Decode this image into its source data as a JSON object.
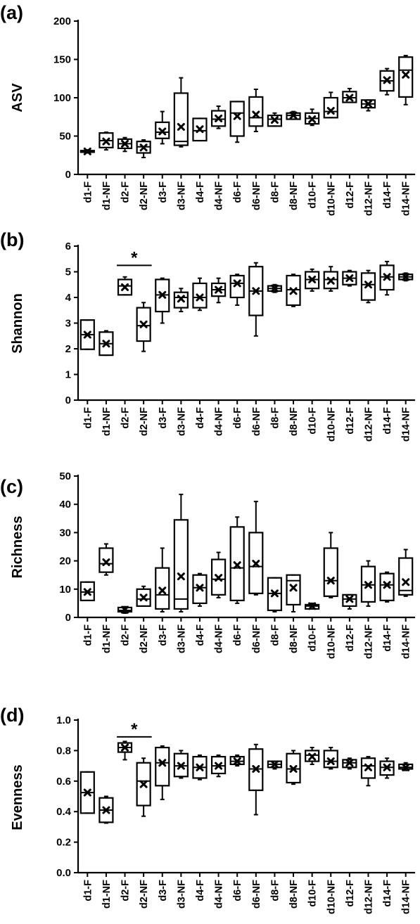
{
  "chart_data": [
    {
      "panel": "(a)",
      "type": "box",
      "ylabel": "ASV",
      "ylim": [
        0,
        200
      ],
      "yticks": [
        0,
        50,
        100,
        150,
        200
      ],
      "categories": [
        "d1-F",
        "d1-NF",
        "d2-F",
        "d2-NF",
        "d3-F",
        "d3-NF",
        "d4-F",
        "d4-NF",
        "d6-F",
        "d6-NF",
        "d8-F",
        "d8-NF",
        "d10-F",
        "d10-NF",
        "d12-F",
        "d12-NF",
        "d14-F",
        "d14-NF"
      ],
      "boxes": [
        {
          "min": 28,
          "q1": 29,
          "median": 30,
          "q3": 31,
          "max": 32,
          "mean": 30
        },
        {
          "min": 32,
          "q1": 35,
          "median": 44,
          "q3": 54,
          "max": 55,
          "mean": 43
        },
        {
          "min": 30,
          "q1": 34,
          "median": 40,
          "q3": 46,
          "max": 48,
          "mean": 40
        },
        {
          "min": 22,
          "q1": 28,
          "median": 36,
          "q3": 43,
          "max": 45,
          "mean": 35
        },
        {
          "min": 40,
          "q1": 47,
          "median": 55,
          "q3": 68,
          "max": 82,
          "mean": 56
        },
        {
          "min": 36,
          "q1": 38,
          "median": 43,
          "q3": 106,
          "max": 126,
          "mean": 62
        },
        {
          "min": 44,
          "q1": 44,
          "median": 57,
          "q3": 73,
          "max": 73,
          "mean": 59
        },
        {
          "min": 60,
          "q1": 63,
          "median": 72,
          "q3": 83,
          "max": 89,
          "mean": 73
        },
        {
          "min": 42,
          "q1": 50,
          "median": 80,
          "q3": 95,
          "max": 95,
          "mean": 76
        },
        {
          "min": 56,
          "q1": 63,
          "median": 74,
          "q3": 101,
          "max": 111,
          "mean": 78
        },
        {
          "min": 63,
          "q1": 63,
          "median": 72,
          "q3": 77,
          "max": 80,
          "mean": 71
        },
        {
          "min": 72,
          "q1": 72,
          "median": 77,
          "q3": 80,
          "max": 82,
          "mean": 77
        },
        {
          "min": 64,
          "q1": 66,
          "median": 73,
          "q3": 80,
          "max": 85,
          "mean": 72
        },
        {
          "min": 74,
          "q1": 74,
          "median": 82,
          "q3": 100,
          "max": 107,
          "mean": 83
        },
        {
          "min": 94,
          "q1": 94,
          "median": 100,
          "q3": 108,
          "max": 112,
          "mean": 100
        },
        {
          "min": 83,
          "q1": 87,
          "median": 92,
          "q3": 97,
          "max": 97,
          "mean": 92
        },
        {
          "min": 104,
          "q1": 109,
          "median": 122,
          "q3": 135,
          "max": 138,
          "mean": 123
        },
        {
          "min": 91,
          "q1": 101,
          "median": 136,
          "q3": 153,
          "max": 155,
          "mean": 130
        }
      ],
      "significance": []
    },
    {
      "panel": "(b)",
      "type": "box",
      "ylabel": "Shannon",
      "ylim": [
        0,
        6
      ],
      "yticks": [
        0,
        1,
        2,
        3,
        4,
        5,
        6
      ],
      "categories": [
        "d1-F",
        "d1-NF",
        "d2-F",
        "d2-NF",
        "d3-F",
        "d3-NF",
        "d4-F",
        "d4-NF",
        "d6-F",
        "d6-NF",
        "d8-F",
        "d8-NF",
        "d10-F",
        "d10-NF",
        "d12-F",
        "d12-NF",
        "d14-F",
        "d14-NF"
      ],
      "boxes": [
        {
          "min": 1.98,
          "q1": 1.98,
          "median": 2.55,
          "q3": 3.12,
          "max": 3.12,
          "mean": 2.55
        },
        {
          "min": 1.75,
          "q1": 1.75,
          "median": 2.2,
          "q3": 2.65,
          "max": 2.7,
          "mean": 2.2
        },
        {
          "min": 4.1,
          "q1": 4.1,
          "median": 4.45,
          "q3": 4.7,
          "max": 4.8,
          "mean": 4.4
        },
        {
          "min": 1.9,
          "q1": 2.3,
          "median": 2.9,
          "q3": 3.6,
          "max": 3.8,
          "mean": 2.95
        },
        {
          "min": 3.0,
          "q1": 3.45,
          "median": 4.1,
          "q3": 4.7,
          "max": 4.75,
          "mean": 4.1
        },
        {
          "min": 3.45,
          "q1": 3.6,
          "median": 4.0,
          "q3": 4.2,
          "max": 4.35,
          "mean": 3.95
        },
        {
          "min": 3.5,
          "q1": 3.6,
          "median": 4.0,
          "q3": 4.55,
          "max": 4.75,
          "mean": 4.0
        },
        {
          "min": 3.8,
          "q1": 4.05,
          "median": 4.3,
          "q3": 4.55,
          "max": 4.75,
          "mean": 4.3
        },
        {
          "min": 3.7,
          "q1": 4.0,
          "median": 4.55,
          "q3": 4.85,
          "max": 4.9,
          "mean": 4.55
        },
        {
          "min": 2.5,
          "q1": 3.3,
          "median": 4.25,
          "q3": 5.2,
          "max": 5.35,
          "mean": 4.25
        },
        {
          "min": 4.2,
          "q1": 4.25,
          "median": 4.35,
          "q3": 4.45,
          "max": 4.5,
          "mean": 4.35
        },
        {
          "min": 3.65,
          "q1": 3.7,
          "median": 4.3,
          "q3": 4.85,
          "max": 4.9,
          "mean": 4.25
        },
        {
          "min": 4.25,
          "q1": 4.35,
          "median": 4.7,
          "q3": 5.0,
          "max": 5.1,
          "mean": 4.7
        },
        {
          "min": 4.25,
          "q1": 4.35,
          "median": 4.7,
          "q3": 5.0,
          "max": 5.2,
          "mean": 4.65
        },
        {
          "min": 4.45,
          "q1": 4.5,
          "median": 4.75,
          "q3": 5.0,
          "max": 5.05,
          "mean": 4.75
        },
        {
          "min": 3.8,
          "q1": 3.9,
          "median": 4.5,
          "q3": 4.95,
          "max": 5.05,
          "mean": 4.5
        },
        {
          "min": 4.1,
          "q1": 4.3,
          "median": 4.8,
          "q3": 5.25,
          "max": 5.4,
          "mean": 4.8
        },
        {
          "min": 4.65,
          "q1": 4.7,
          "median": 4.8,
          "q3": 4.9,
          "max": 4.95,
          "mean": 4.8
        }
      ],
      "significance": [
        {
          "from": "d2-F",
          "to": "d2-NF",
          "at": 5.25,
          "label": "*"
        }
      ]
    },
    {
      "panel": "(c)",
      "type": "box",
      "ylabel": "Richness",
      "ylim": [
        0,
        50
      ],
      "yticks": [
        0,
        10,
        20,
        30,
        40,
        50
      ],
      "categories": [
        "d1-F",
        "d1-NF",
        "d2-F",
        "d2-NF",
        "d3-F",
        "d3-NF",
        "d4-F",
        "d4-NF",
        "d6-F",
        "d6-NF",
        "d8-F",
        "d8-NF",
        "d10-F",
        "d10-NF",
        "d12-F",
        "d12-NF",
        "d14-F",
        "d14-NF"
      ],
      "boxes": [
        {
          "min": 6,
          "q1": 6,
          "median": 9,
          "q3": 12.5,
          "max": 12.5,
          "mean": 9
        },
        {
          "min": 15,
          "q1": 16,
          "median": 19,
          "q3": 24.5,
          "max": 26,
          "mean": 19.5
        },
        {
          "min": 1.5,
          "q1": 2,
          "median": 2.5,
          "q3": 3.5,
          "max": 3.8,
          "mean": 2.7
        },
        {
          "min": 4,
          "q1": 4,
          "median": 6.5,
          "q3": 10,
          "max": 11,
          "mean": 7
        },
        {
          "min": 2,
          "q1": 3,
          "median": 8,
          "q3": 17.5,
          "max": 24.5,
          "mean": 9.5
        },
        {
          "min": 2,
          "q1": 3,
          "median": 6.5,
          "q3": 34.5,
          "max": 43.5,
          "mean": 14.5
        },
        {
          "min": 4,
          "q1": 5,
          "median": 10.5,
          "q3": 15,
          "max": 15.5,
          "mean": 10.5
        },
        {
          "min": 7,
          "q1": 8,
          "median": 13.5,
          "q3": 20.5,
          "max": 23,
          "mean": 14
        },
        {
          "min": 5,
          "q1": 6,
          "median": 17.5,
          "q3": 32,
          "max": 35.5,
          "mean": 18.5
        },
        {
          "min": 8,
          "q1": 8.5,
          "median": 18,
          "q3": 30,
          "max": 41,
          "mean": 19
        },
        {
          "min": 2,
          "q1": 2.5,
          "median": 8.5,
          "q3": 14,
          "max": 14,
          "mean": 8.5
        },
        {
          "min": 2,
          "q1": 4.5,
          "median": 13,
          "q3": 15,
          "max": 15,
          "mean": 10.5
        },
        {
          "min": 3,
          "q1": 3,
          "median": 4,
          "q3": 4.5,
          "max": 5,
          "mean": 4
        },
        {
          "min": 7,
          "q1": 7.5,
          "median": 13,
          "q3": 24.5,
          "max": 30,
          "mean": 13
        },
        {
          "min": 3,
          "q1": 4,
          "median": 6.5,
          "q3": 8,
          "max": 8,
          "mean": 6.5
        },
        {
          "min": 4,
          "q1": 5.5,
          "median": 11.5,
          "q3": 18,
          "max": 20,
          "mean": 11.5
        },
        {
          "min": 5.5,
          "q1": 6,
          "median": 11.5,
          "q3": 15.5,
          "max": 16,
          "mean": 11.5
        },
        {
          "min": 7.5,
          "q1": 8,
          "median": 9.5,
          "q3": 21,
          "max": 24,
          "mean": 12.5
        }
      ],
      "significance": []
    },
    {
      "panel": "(d)",
      "type": "box",
      "ylabel": "Evenness",
      "ylim": [
        0,
        1.0
      ],
      "yticks": [
        0.0,
        0.2,
        0.4,
        0.6,
        0.8,
        1.0
      ],
      "ytick_labels": [
        "0.0",
        "0.2",
        "0.4",
        "0.6",
        "0.8",
        "1.0"
      ],
      "categories": [
        "d1-F",
        "d1-NF",
        "d2-F",
        "d2-NF",
        "d3-F",
        "d3-NF",
        "d4-F",
        "d4-NF",
        "d6-F",
        "d6-NF",
        "d8-F",
        "d8-NF",
        "d10-F",
        "d10-NF",
        "d12-F",
        "d12-NF",
        "d14-F",
        "d14-NF"
      ],
      "boxes": [
        {
          "min": 0.39,
          "q1": 0.39,
          "median": 0.525,
          "q3": 0.66,
          "max": 0.66,
          "mean": 0.525
        },
        {
          "min": 0.325,
          "q1": 0.33,
          "median": 0.41,
          "q3": 0.49,
          "max": 0.5,
          "mean": 0.41
        },
        {
          "min": 0.74,
          "q1": 0.79,
          "median": 0.82,
          "q3": 0.85,
          "max": 0.86,
          "mean": 0.82
        },
        {
          "min": 0.37,
          "q1": 0.44,
          "median": 0.6,
          "q3": 0.72,
          "max": 0.75,
          "mean": 0.58
        },
        {
          "min": 0.48,
          "q1": 0.57,
          "median": 0.72,
          "q3": 0.82,
          "max": 0.83,
          "mean": 0.72
        },
        {
          "min": 0.62,
          "q1": 0.63,
          "median": 0.7,
          "q3": 0.78,
          "max": 0.8,
          "mean": 0.7
        },
        {
          "min": 0.61,
          "q1": 0.62,
          "median": 0.69,
          "q3": 0.76,
          "max": 0.77,
          "mean": 0.69
        },
        {
          "min": 0.63,
          "q1": 0.65,
          "median": 0.7,
          "q3": 0.76,
          "max": 0.77,
          "mean": 0.7
        },
        {
          "min": 0.7,
          "q1": 0.71,
          "median": 0.73,
          "q3": 0.76,
          "max": 0.77,
          "mean": 0.73
        },
        {
          "min": 0.38,
          "q1": 0.54,
          "median": 0.68,
          "q3": 0.81,
          "max": 0.84,
          "mean": 0.68
        },
        {
          "min": 0.68,
          "q1": 0.69,
          "median": 0.71,
          "q3": 0.73,
          "max": 0.73,
          "mean": 0.71
        },
        {
          "min": 0.58,
          "q1": 0.59,
          "median": 0.68,
          "q3": 0.78,
          "max": 0.8,
          "mean": 0.68
        },
        {
          "min": 0.71,
          "q1": 0.73,
          "median": 0.77,
          "q3": 0.8,
          "max": 0.82,
          "mean": 0.76
        },
        {
          "min": 0.68,
          "q1": 0.69,
          "median": 0.73,
          "q3": 0.8,
          "max": 0.82,
          "mean": 0.73
        },
        {
          "min": 0.68,
          "q1": 0.69,
          "median": 0.72,
          "q3": 0.74,
          "max": 0.75,
          "mean": 0.72
        },
        {
          "min": 0.57,
          "q1": 0.62,
          "median": 0.7,
          "q3": 0.75,
          "max": 0.76,
          "mean": 0.69
        },
        {
          "min": 0.62,
          "q1": 0.64,
          "median": 0.69,
          "q3": 0.73,
          "max": 0.75,
          "mean": 0.69
        },
        {
          "min": 0.67,
          "q1": 0.68,
          "median": 0.69,
          "q3": 0.71,
          "max": 0.72,
          "mean": 0.69
        }
      ],
      "significance": [
        {
          "from": "d2-F",
          "to": "d2-NF",
          "at": 0.89,
          "label": "*"
        }
      ]
    }
  ]
}
